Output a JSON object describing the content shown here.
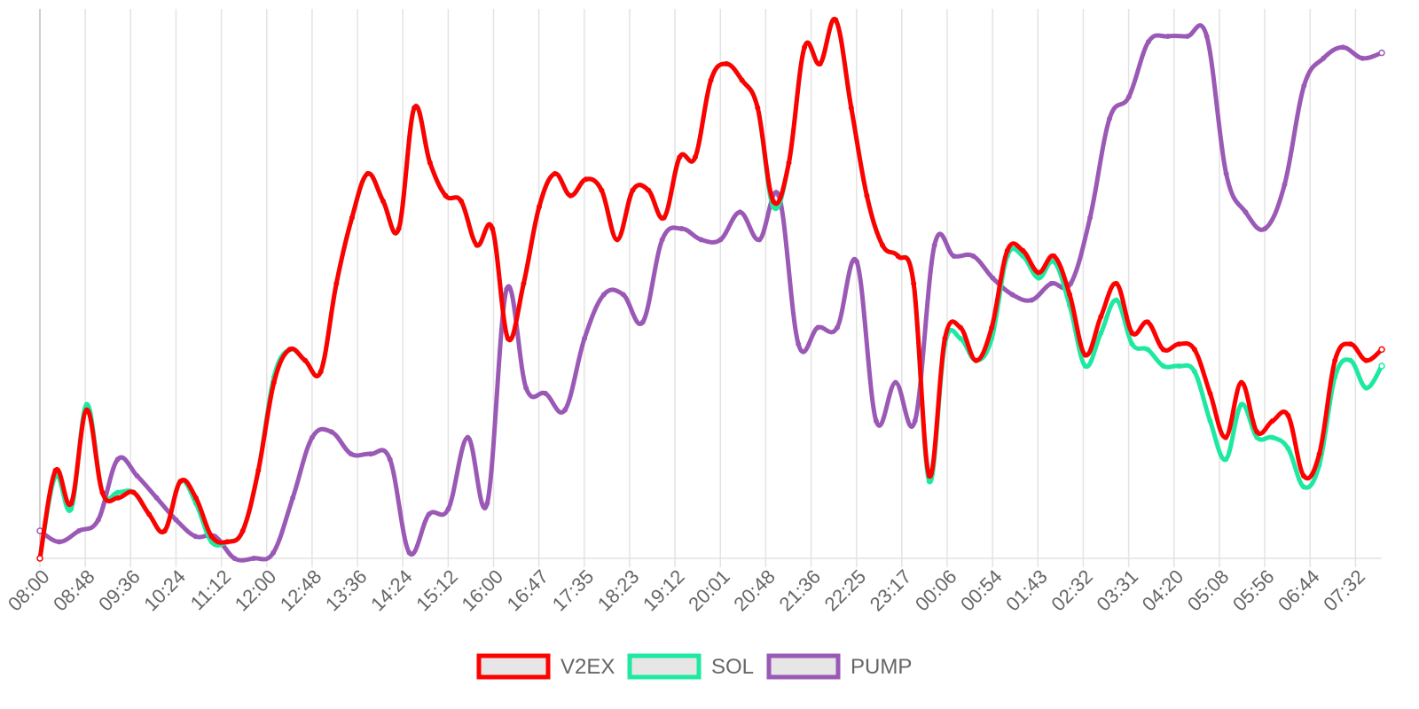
{
  "chart_data": {
    "type": "line",
    "title": "",
    "xlabel": "",
    "ylabel": "",
    "grid": "vertical",
    "y_axis_labels_visible": false,
    "ylim": [
      0,
      100
    ],
    "legend_position": "bottom",
    "tick_labels": [
      "08:00",
      "08:48",
      "09:36",
      "10:24",
      "11:12",
      "12:00",
      "12:48",
      "13:36",
      "14:24",
      "15:12",
      "16:00",
      "16:47",
      "17:35",
      "18:23",
      "19:12",
      "20:01",
      "20:48",
      "21:36",
      "22:25",
      "23:17",
      "00:06",
      "00:54",
      "01:43",
      "02:32",
      "03:31",
      "04:20",
      "05:08",
      "05:56",
      "06:44",
      "07:32"
    ],
    "series": [
      {
        "name": "V2EX",
        "color": "#ff0000",
        "values": [
          0,
          16,
          10,
          27,
          12,
          11,
          12,
          8,
          5,
          14,
          11,
          4,
          3,
          5,
          16,
          32,
          38,
          36,
          34,
          50,
          62,
          70,
          65,
          60,
          82,
          72,
          66,
          65,
          57,
          60,
          40,
          50,
          64,
          70,
          66,
          69,
          67,
          58,
          67,
          67,
          62,
          73,
          73,
          87,
          90,
          87,
          82,
          65,
          72,
          93,
          90,
          98,
          82,
          66,
          57,
          55,
          50,
          15,
          40,
          42,
          36,
          42,
          56,
          56,
          52,
          55,
          48,
          37,
          44,
          50,
          41,
          43,
          38,
          39,
          38,
          30,
          22,
          32,
          23,
          25,
          26,
          15,
          19,
          36,
          39,
          36,
          38
        ]
      },
      {
        "name": "SOL",
        "color": "#1de9a0",
        "values": [
          0,
          15,
          9,
          28,
          12,
          12,
          12,
          8,
          5,
          14,
          10,
          3,
          3,
          5,
          16,
          33,
          38,
          36,
          34,
          50,
          62,
          70,
          65,
          60,
          82,
          72,
          66,
          65,
          57,
          60,
          40,
          50,
          64,
          70,
          66,
          69,
          67,
          58,
          67,
          67,
          62,
          73,
          73,
          87,
          90,
          87,
          82,
          64,
          72,
          93,
          90,
          98,
          82,
          66,
          57,
          55,
          50,
          14,
          39,
          40,
          36,
          40,
          55,
          55,
          51,
          54,
          46,
          35,
          41,
          47,
          39,
          38,
          35,
          35,
          34,
          25,
          18,
          28,
          22,
          22,
          20,
          13,
          17,
          33,
          36,
          31,
          35
        ]
      },
      {
        "name": "PUMP",
        "color": "#9b59b6",
        "values": [
          5,
          3,
          5,
          7,
          18,
          15,
          11,
          7,
          4,
          4,
          0,
          0,
          1,
          11,
          22,
          23,
          19,
          19,
          18,
          1,
          8,
          9,
          22,
          10,
          49,
          31,
          30,
          27,
          40,
          48,
          48,
          43,
          58,
          60,
          58,
          58,
          63,
          58,
          66,
          39,
          42,
          42,
          54,
          25,
          32,
          25,
          57,
          55,
          55,
          51,
          48,
          47,
          50,
          50,
          62,
          80,
          84,
          94,
          95,
          95,
          95,
          70,
          63,
          60,
          68,
          86,
          91,
          93,
          91,
          92
        ]
      }
    ]
  }
}
